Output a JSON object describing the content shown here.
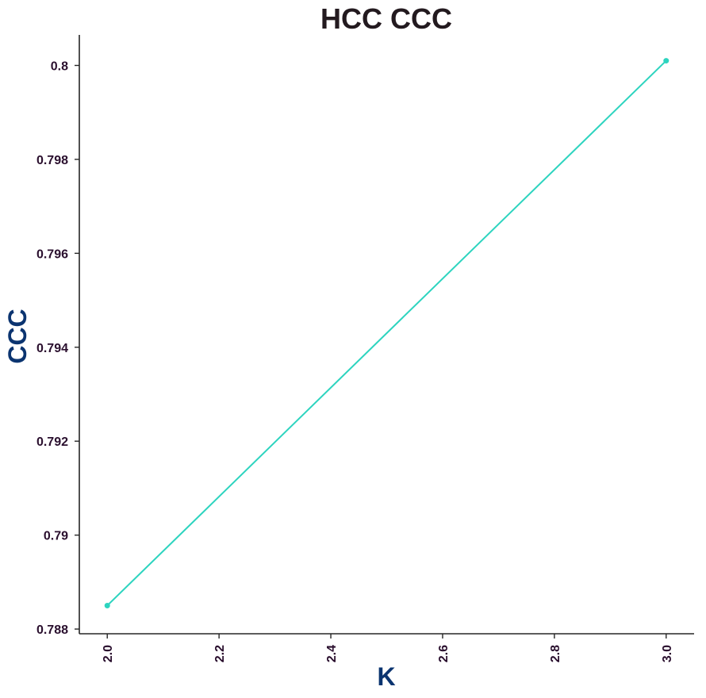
{
  "chart_data": {
    "type": "line",
    "title": "HCC CCC",
    "xlabel": "K",
    "ylabel": "CCC",
    "x": [
      2.0,
      3.0
    ],
    "series": [
      {
        "values": [
          0.7885,
          0.8001
        ],
        "color": "#2dd4bf"
      }
    ],
    "xlim": [
      1.95,
      3.05
    ],
    "ylim": [
      0.7879,
      0.80065
    ],
    "x_ticks": [
      "2.0",
      "2.2",
      "2.4",
      "2.6",
      "2.8",
      "3.0"
    ],
    "x_tick_values": [
      2.0,
      2.2,
      2.4,
      2.6,
      2.8,
      3.0
    ],
    "y_ticks": [
      "0.788",
      "0.79",
      "0.792",
      "0.794",
      "0.796",
      "0.798",
      "0.8"
    ],
    "y_tick_values": [
      0.788,
      0.79,
      0.792,
      0.794,
      0.796,
      0.798,
      0.8
    ],
    "grid": false,
    "legend": "none"
  }
}
